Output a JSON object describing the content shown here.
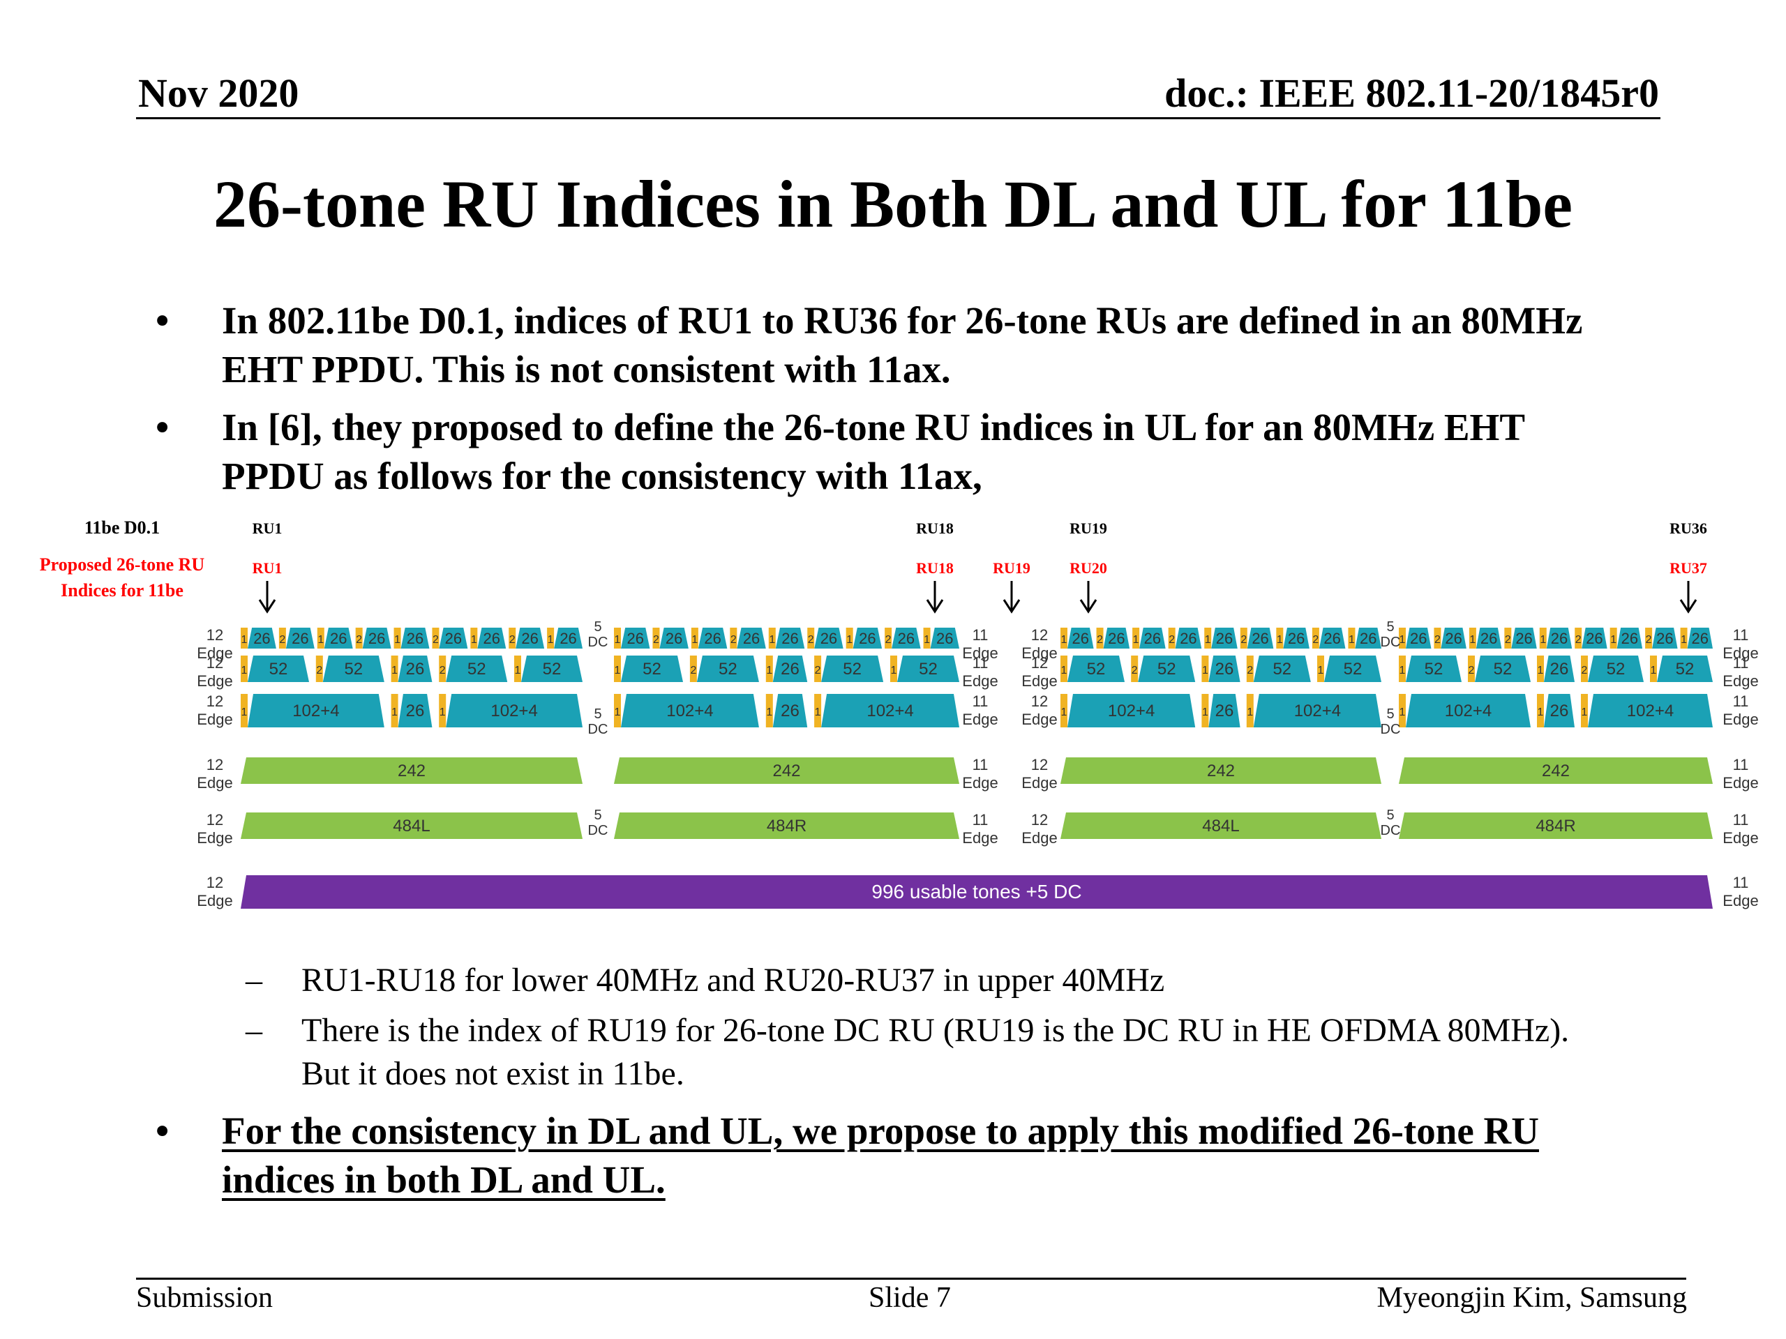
{
  "header": {
    "date": "Nov 2020",
    "doc": "doc.: IEEE 802.11-20/1845r0"
  },
  "title": "26-tone RU Indices in Both DL and UL for 11be",
  "bullets": [
    {
      "line1": "In 802.11be D0.1, indices of RU1 to RU36 for 26-tone RUs are defined in an 80MHz",
      "line2": "EHT PPDU. This is not consistent with 11ax."
    },
    {
      "line1": "In [6], they proposed to define the 26-tone RU indices in UL for an 80MHz EHT",
      "line2": "PPDU as follows for the consistency with 11ax,"
    }
  ],
  "diagram": {
    "label_d01": "11be D0.1",
    "label_proposed_1": "Proposed 26-tone RU",
    "label_proposed_2": "Indices for 11be",
    "d01_markers": [
      "RU1",
      "RU18",
      "RU19",
      "RU36"
    ],
    "proposed_markers": [
      "RU1",
      "RU18",
      "RU19",
      "RU20",
      "RU37"
    ],
    "colors": {
      "ru_small": "#1ba1b5",
      "ru_large": "#8bc34a",
      "ru_full": "#7030a0",
      "null_tone": "#f0b323",
      "marker_red": "#ff0000"
    },
    "rows": {
      "r26": "26",
      "r52": "52",
      "r106": "102+4",
      "r242": "242",
      "r484L": "484L",
      "r484R": "484R",
      "r996": "996 usable tones +5 DC"
    },
    "edge_labels": {
      "edge12_num": "12",
      "edge11_num": "11",
      "edge_word": "Edge",
      "one": "1",
      "two": "2",
      "dc_label": "DC",
      "dc5": "5"
    }
  },
  "subbullets": [
    {
      "line1": "RU1-RU18 for lower 40MHz and RU20-RU37 in upper 40MHz"
    },
    {
      "line1": "There is the index of RU19 for 26-tone DC RU (RU19 is the DC RU in HE OFDMA 80MHz).",
      "line2": "But it does not exist in 11be."
    }
  ],
  "bullet3": {
    "line1": "For the consistency in DL and UL, we propose to apply this modified 26-tone RU",
    "line2": "indices in both DL and UL."
  },
  "footer": {
    "left": "Submission",
    "center": "Slide 7",
    "right": "Myeongjin Kim, Samsung"
  }
}
